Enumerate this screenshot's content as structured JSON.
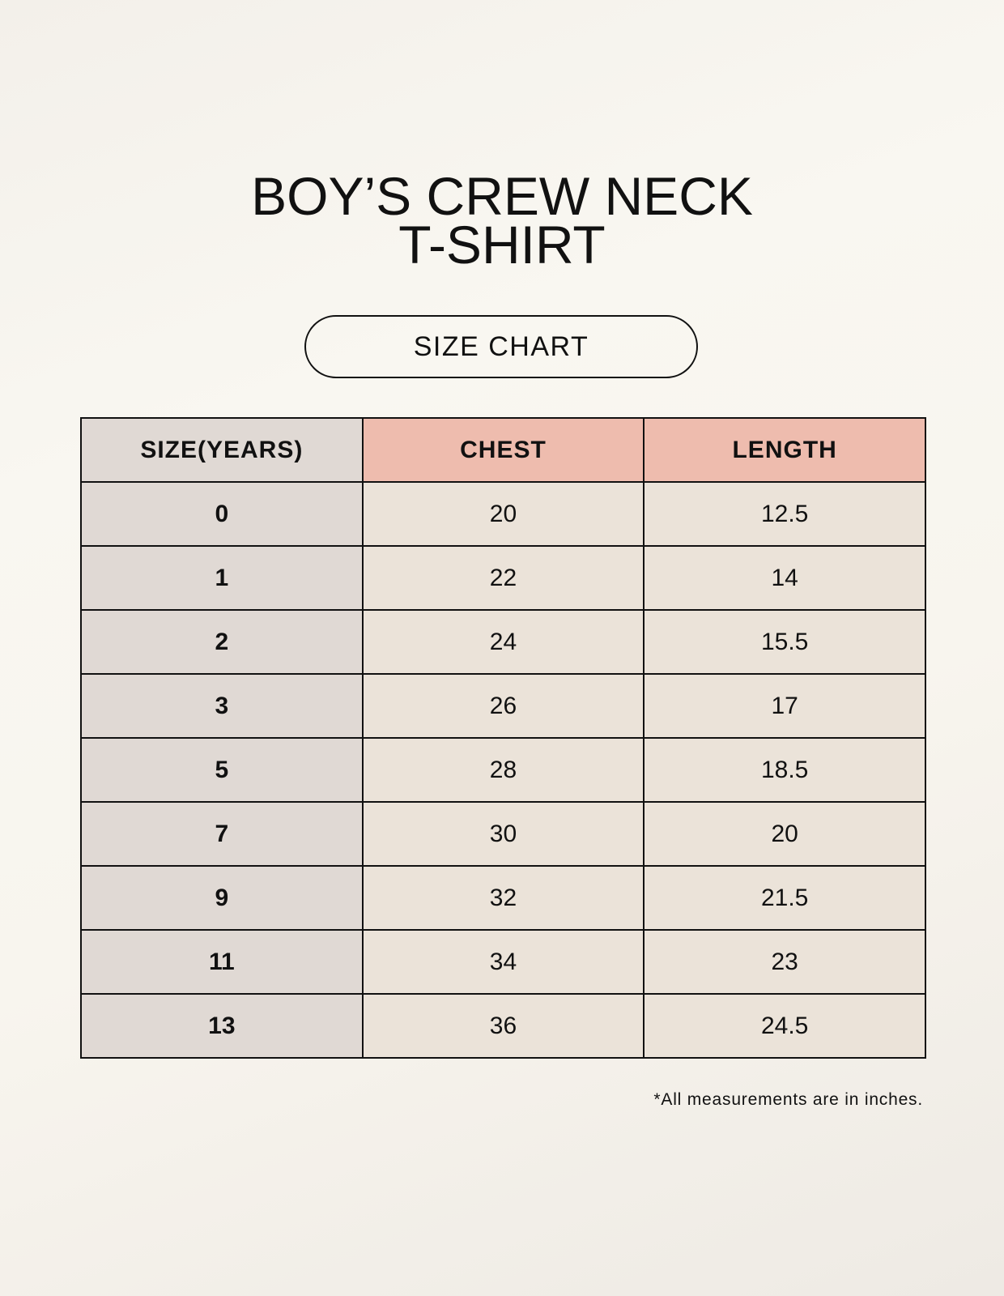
{
  "title_line1": "BOY’S CREW NECK",
  "title_line2": "T-SHIRT",
  "subtitle": "SIZE CHART",
  "table": {
    "headers": [
      "SIZE(YEARS)",
      "CHEST",
      "LENGTH"
    ],
    "rows": [
      [
        "0",
        "20",
        "12.5"
      ],
      [
        "1",
        "22",
        "14"
      ],
      [
        "2",
        "24",
        "15.5"
      ],
      [
        "3",
        "26",
        "17"
      ],
      [
        "5",
        "28",
        "18.5"
      ],
      [
        "7",
        "30",
        "20"
      ],
      [
        "9",
        "32",
        "21.5"
      ],
      [
        "11",
        "34",
        "23"
      ],
      [
        "13",
        "36",
        "24.5"
      ]
    ]
  },
  "footnote": "*All measurements are in inches.",
  "colors": {
    "size_column": "#e0d9d4",
    "header_accent": "#eebcae",
    "cell": "#ebe3d9"
  }
}
